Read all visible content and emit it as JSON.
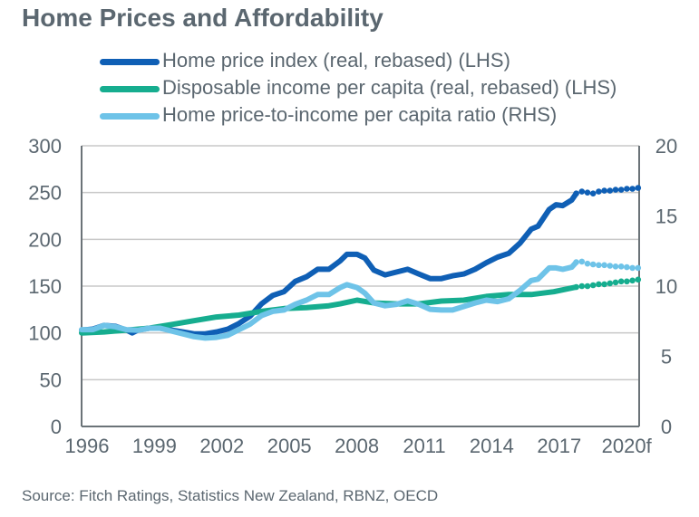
{
  "title": "Home Prices and Affordability",
  "source": "Source: Fitch Ratings, Statistics New Zealand, RBNZ, OECD",
  "colors": {
    "home_price": "#0f5fb5",
    "income": "#16ad8f",
    "ratio": "#6ec3e8",
    "axis": "#5b6770",
    "grid": "#c8c8c8",
    "text": "#5b6770"
  },
  "chart_data": {
    "type": "line",
    "title": "Home Prices and Affordability",
    "xlabel": "",
    "ylabel_left": "",
    "ylabel_right": "",
    "x_ticks": [
      "1996",
      "1999",
      "2002",
      "2005",
      "2008",
      "2011",
      "2014",
      "2017",
      "2020f"
    ],
    "x_tick_values": [
      1996,
      1999,
      2002,
      2005,
      2008,
      2011,
      2014,
      2017,
      2020
    ],
    "xlim": [
      1996,
      2020.75
    ],
    "y_left_ticks": [
      "0",
      "50",
      "100",
      "150",
      "200",
      "250",
      "300"
    ],
    "ylim_left": [
      0,
      300
    ],
    "y_right_ticks": [
      "0",
      "5",
      "10",
      "15",
      "20"
    ],
    "ylim_right": [
      0,
      20
    ],
    "grid": true,
    "legend_position": "top",
    "forecast_start": 2018.0,
    "series": [
      {
        "name": "Home price index (real, rebased) (LHS)",
        "axis": "left",
        "color_key": "home_price",
        "points": [
          [
            1996.0,
            103
          ],
          [
            1996.5,
            104
          ],
          [
            1997.0,
            108
          ],
          [
            1997.5,
            107
          ],
          [
            1998.0,
            103
          ],
          [
            1998.25,
            100
          ],
          [
            1998.5,
            103
          ],
          [
            1999.0,
            105
          ],
          [
            1999.5,
            105
          ],
          [
            2000.0,
            103
          ],
          [
            2000.5,
            101
          ],
          [
            2001.0,
            99
          ],
          [
            2001.5,
            99
          ],
          [
            2002.0,
            101
          ],
          [
            2002.5,
            104
          ],
          [
            2003.0,
            110
          ],
          [
            2003.5,
            118
          ],
          [
            2004.0,
            131
          ],
          [
            2004.5,
            140
          ],
          [
            2005.0,
            144
          ],
          [
            2005.5,
            155
          ],
          [
            2006.0,
            160
          ],
          [
            2006.5,
            168
          ],
          [
            2007.0,
            168
          ],
          [
            2007.5,
            177
          ],
          [
            2007.8,
            184
          ],
          [
            2008.25,
            184
          ],
          [
            2008.6,
            180
          ],
          [
            2009.0,
            167
          ],
          [
            2009.5,
            162
          ],
          [
            2010.0,
            165
          ],
          [
            2010.5,
            168
          ],
          [
            2011.0,
            163
          ],
          [
            2011.5,
            158
          ],
          [
            2012.0,
            158
          ],
          [
            2012.5,
            161
          ],
          [
            2013.0,
            163
          ],
          [
            2013.5,
            168
          ],
          [
            2014.0,
            175
          ],
          [
            2014.5,
            181
          ],
          [
            2015.0,
            185
          ],
          [
            2015.5,
            196
          ],
          [
            2016.0,
            211
          ],
          [
            2016.3,
            214
          ],
          [
            2016.8,
            232
          ],
          [
            2017.1,
            237
          ],
          [
            2017.4,
            236
          ],
          [
            2017.8,
            242
          ],
          [
            2018.0,
            249
          ]
        ],
        "forecast_points": [
          [
            2018.0,
            249
          ],
          [
            2018.25,
            251
          ],
          [
            2018.5,
            250
          ],
          [
            2018.75,
            249
          ],
          [
            2019.0,
            251
          ],
          [
            2019.25,
            252
          ],
          [
            2019.5,
            252
          ],
          [
            2019.75,
            253
          ],
          [
            2020.0,
            253
          ],
          [
            2020.25,
            254
          ],
          [
            2020.5,
            254
          ],
          [
            2020.75,
            255
          ]
        ]
      },
      {
        "name": "Disposable income per capita (real, rebased) (LHS)",
        "axis": "left",
        "color_key": "income",
        "points": [
          [
            1996.0,
            100
          ],
          [
            1997.0,
            101
          ],
          [
            1998.0,
            103
          ],
          [
            1999.0,
            105
          ],
          [
            2000.0,
            109
          ],
          [
            2001.0,
            113
          ],
          [
            2002.0,
            117
          ],
          [
            2003.0,
            119
          ],
          [
            2004.0,
            123
          ],
          [
            2005.0,
            126
          ],
          [
            2006.0,
            127
          ],
          [
            2007.0,
            129
          ],
          [
            2007.5,
            131
          ],
          [
            2008.25,
            135
          ],
          [
            2009.0,
            132
          ],
          [
            2010.0,
            131
          ],
          [
            2011.0,
            131
          ],
          [
            2012.0,
            134
          ],
          [
            2013.0,
            135
          ],
          [
            2014.0,
            139
          ],
          [
            2015.0,
            141
          ],
          [
            2016.0,
            141
          ],
          [
            2017.0,
            144
          ],
          [
            2018.0,
            149
          ]
        ],
        "forecast_points": [
          [
            2018.0,
            149
          ],
          [
            2018.25,
            150
          ],
          [
            2018.5,
            150
          ],
          [
            2018.75,
            151
          ],
          [
            2019.0,
            152
          ],
          [
            2019.25,
            152
          ],
          [
            2019.5,
            153
          ],
          [
            2019.75,
            154
          ],
          [
            2020.0,
            155
          ],
          [
            2020.25,
            155
          ],
          [
            2020.5,
            156
          ],
          [
            2020.75,
            157
          ]
        ]
      },
      {
        "name": "Home price-to-income per capita ratio (RHS)",
        "axis": "right",
        "color_key": "ratio",
        "points": [
          [
            1996.0,
            6.9
          ],
          [
            1996.5,
            6.9
          ],
          [
            1997.0,
            7.2
          ],
          [
            1997.5,
            7.1
          ],
          [
            1998.0,
            6.9
          ],
          [
            1998.5,
            6.85
          ],
          [
            1999.0,
            7.0
          ],
          [
            1999.5,
            7.0
          ],
          [
            2000.0,
            6.8
          ],
          [
            2000.5,
            6.6
          ],
          [
            2001.0,
            6.4
          ],
          [
            2001.5,
            6.3
          ],
          [
            2002.0,
            6.35
          ],
          [
            2002.5,
            6.5
          ],
          [
            2003.0,
            6.9
          ],
          [
            2003.5,
            7.3
          ],
          [
            2004.0,
            7.9
          ],
          [
            2004.5,
            8.2
          ],
          [
            2005.0,
            8.3
          ],
          [
            2005.5,
            8.7
          ],
          [
            2006.0,
            9.0
          ],
          [
            2006.5,
            9.4
          ],
          [
            2007.0,
            9.4
          ],
          [
            2007.5,
            9.9
          ],
          [
            2007.8,
            10.1
          ],
          [
            2008.25,
            9.9
          ],
          [
            2008.6,
            9.5
          ],
          [
            2009.0,
            8.8
          ],
          [
            2009.5,
            8.6
          ],
          [
            2010.0,
            8.7
          ],
          [
            2010.5,
            8.95
          ],
          [
            2011.0,
            8.7
          ],
          [
            2011.5,
            8.35
          ],
          [
            2012.0,
            8.3
          ],
          [
            2012.5,
            8.3
          ],
          [
            2013.0,
            8.55
          ],
          [
            2013.5,
            8.8
          ],
          [
            2014.0,
            9.0
          ],
          [
            2014.5,
            8.9
          ],
          [
            2015.0,
            9.1
          ],
          [
            2015.5,
            9.7
          ],
          [
            2016.0,
            10.4
          ],
          [
            2016.3,
            10.5
          ],
          [
            2016.8,
            11.3
          ],
          [
            2017.1,
            11.3
          ],
          [
            2017.4,
            11.2
          ],
          [
            2017.8,
            11.35
          ],
          [
            2018.0,
            11.7
          ]
        ],
        "forecast_points": [
          [
            2018.0,
            11.7
          ],
          [
            2018.25,
            11.75
          ],
          [
            2018.5,
            11.6
          ],
          [
            2018.75,
            11.55
          ],
          [
            2019.0,
            11.5
          ],
          [
            2019.25,
            11.5
          ],
          [
            2019.5,
            11.45
          ],
          [
            2019.75,
            11.4
          ],
          [
            2020.0,
            11.4
          ],
          [
            2020.25,
            11.35
          ],
          [
            2020.5,
            11.3
          ],
          [
            2020.75,
            11.3
          ]
        ]
      }
    ]
  }
}
